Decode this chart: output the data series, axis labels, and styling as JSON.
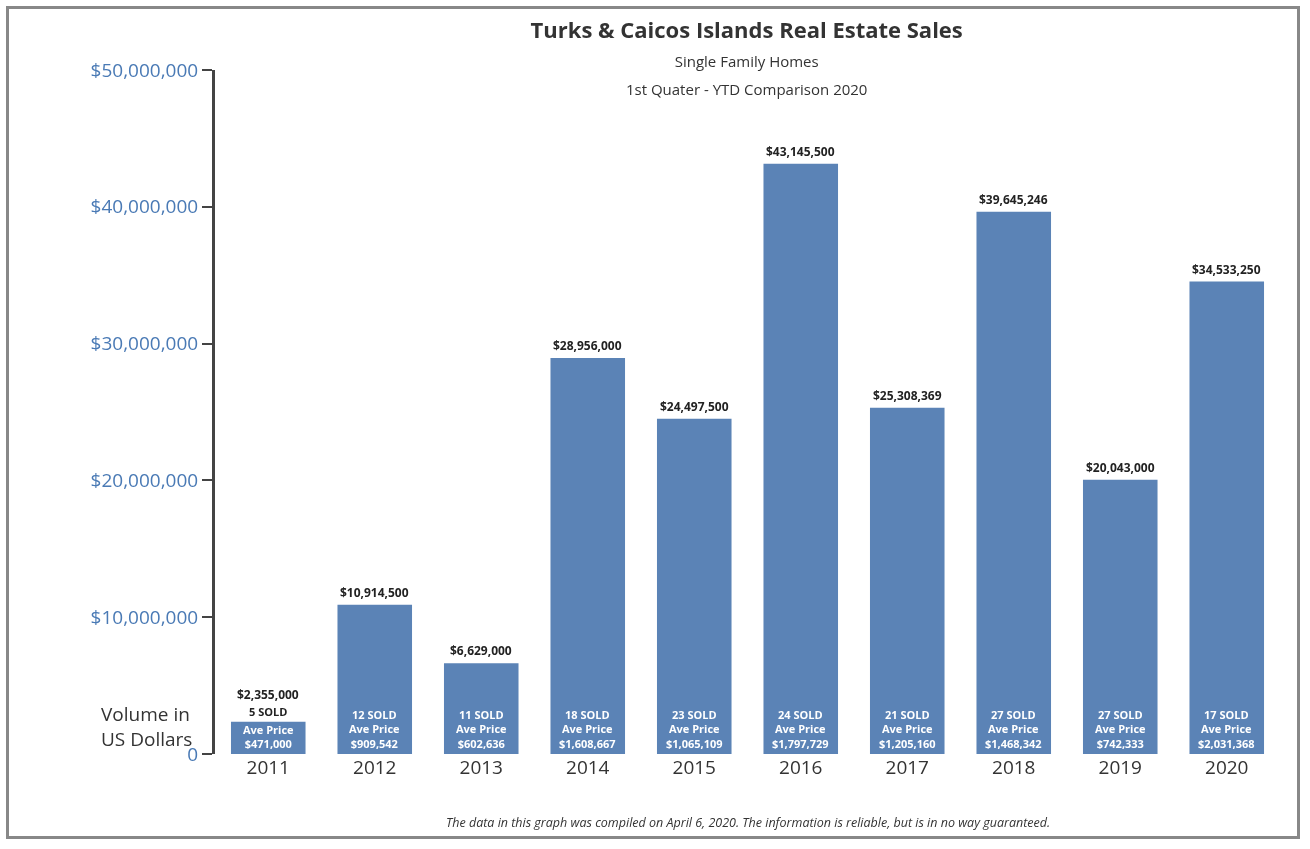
{
  "chart_data": {
    "type": "bar",
    "title": "Turks & Caicos Islands Real Estate Sales",
    "subtitle": "Single Family Homes\n1st Quater - YTD Comparison 2020",
    "ylabel": "Volume in\nUS Dollars",
    "categories": [
      "2011",
      "2012",
      "2013",
      "2014",
      "2015",
      "2016",
      "2017",
      "2018",
      "2019",
      "2020"
    ],
    "values": [
      2355000,
      10914500,
      6629000,
      28956000,
      24497500,
      43145500,
      25308369,
      39645246,
      20043000,
      34533250
    ],
    "value_labels": [
      "$2,355,000",
      "$10,914,500",
      "$6,629,000",
      "$28,956,000",
      "$24,497,500",
      "$43,145,500",
      "$25,308,369",
      "$39,645,246",
      "$20,043,000",
      "$34,533,250"
    ],
    "color": "#5b83b6",
    "ylim": [
      0,
      50000000
    ],
    "yticks": [
      {
        "value": 0,
        "label": "0"
      },
      {
        "value": 10000000,
        "label": "$10,000,000"
      },
      {
        "value": 20000000,
        "label": "$20,000,000"
      },
      {
        "value": 30000000,
        "label": "$30,000,000"
      },
      {
        "value": 40000000,
        "label": "$40,000,000"
      },
      {
        "value": 50000000,
        "label": "$50,000,000"
      }
    ],
    "grid": false,
    "annotations": [
      {
        "text": "5 SOLD",
        "x": "2011",
        "y": 2355000
      },
      "Ave Price\n$471,000",
      "12 SOLD\nAve Price\n$909,542",
      "11 SOLD\nAve Price\n$602,636",
      "18 SOLD\nAve Price\n$1,608,667",
      "23 SOLD\nAve Price\n$1,065,109",
      "24 SOLD\nAve Price\n$1,797,729",
      "21 SOLD\nAve Price\n$1,205,160",
      "27 SOLD\nAve Price\n$1,468,342",
      "27 SOLD\nAve Price\n$742,333",
      "17 SOLD\nAve Price\n$2,031,368",
      "The data in this graph was compiled on April 6, 2020. The information is reliable, but is in no way guaranteed."
    ]
  }
}
